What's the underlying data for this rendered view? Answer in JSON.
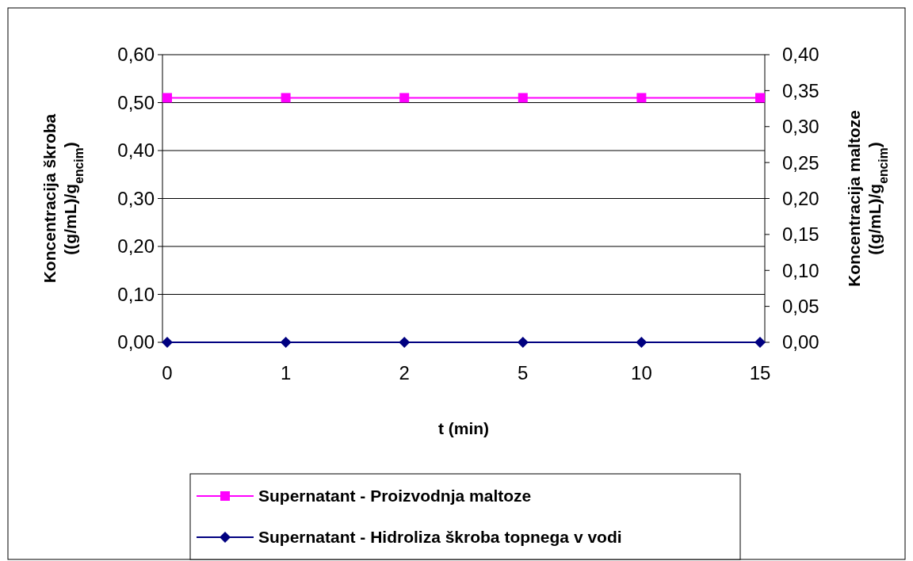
{
  "chart_data": {
    "type": "line",
    "xlabel": "t (min)",
    "ylabel": "Koncentracija škroba ((g/mL)/g$_{encim}$)",
    "y2label": "Koncentracija maltoze ((g/mL)/g$_{encim}$)",
    "categories": [
      "0",
      "1",
      "2",
      "5",
      "10",
      "15"
    ],
    "series": [
      {
        "name": "Supernatant - Proizvodnja maltoze",
        "color": "#ff00ff",
        "marker": "square",
        "axis": "y2",
        "values": [
          0.34,
          0.34,
          0.34,
          0.34,
          0.34,
          0.34
        ]
      },
      {
        "name": "Supernatant - Hidroliza škroba topnega v vodi",
        "color": "#000080",
        "marker": "diamond",
        "values": [
          0,
          0,
          0,
          0,
          0,
          0
        ]
      }
    ],
    "ylim": [
      0,
      0.6
    ],
    "yticks": [
      {
        "value": 0,
        "label": "0,00"
      },
      {
        "value": 0.1,
        "label": "0,10"
      },
      {
        "value": 0.2,
        "label": "0,20"
      },
      {
        "value": 0.3,
        "label": "0,30"
      },
      {
        "value": 0.4,
        "label": "0,40"
      },
      {
        "value": 0.5,
        "label": "0,50"
      },
      {
        "value": 0.6,
        "label": "0,60"
      }
    ],
    "y2lim": [
      0,
      0.4
    ],
    "y2ticks": [
      {
        "value": 0,
        "label": "0,00"
      },
      {
        "value": 0.05,
        "label": "0,05"
      },
      {
        "value": 0.1,
        "label": "0,10"
      },
      {
        "value": 0.15,
        "label": "0,15"
      },
      {
        "value": 0.2,
        "label": "0,20"
      },
      {
        "value": 0.25,
        "label": "0,25"
      },
      {
        "value": 0.3,
        "label": "0,30"
      },
      {
        "value": 0.35,
        "label": "0,35"
      },
      {
        "value": 0.4,
        "label": "0,40"
      }
    ],
    "grid": "y",
    "legend": "bottom"
  }
}
